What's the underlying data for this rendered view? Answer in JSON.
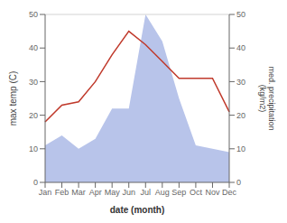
{
  "chart_data": {
    "type": "line",
    "categories": [
      "Jan",
      "Feb",
      "Mar",
      "Apr",
      "May",
      "Jun",
      "Jul",
      "Aug",
      "Sep",
      "Oct",
      "Nov",
      "Dec"
    ],
    "series": [
      {
        "type": "area",
        "axis": "y2",
        "color": "#b8c4ea",
        "values": [
          11,
          14,
          10,
          13,
          22,
          22,
          50,
          42,
          25,
          11,
          10,
          9
        ]
      },
      {
        "type": "line",
        "color": "#c0392b",
        "values": [
          18,
          23,
          24,
          30,
          38,
          45,
          41,
          36,
          31,
          31,
          31,
          21
        ]
      }
    ],
    "xlabel": "date (month)",
    "ylabel": "max temp (C)",
    "y2label": "med. precipitation\n(kg/m2)",
    "ylim": [
      0,
      50
    ],
    "yticks": [
      0,
      10,
      20,
      30,
      40,
      50
    ],
    "y2lim": [
      0,
      50
    ],
    "y2ticks": [
      0,
      10,
      20,
      30,
      40,
      50
    ]
  }
}
